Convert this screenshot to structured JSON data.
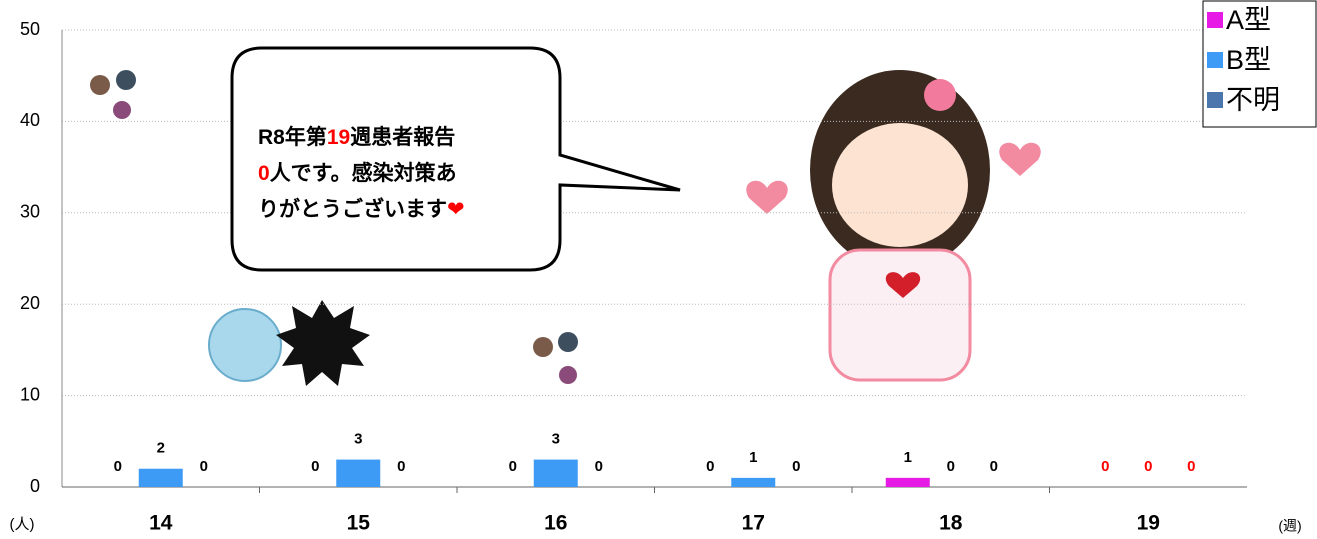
{
  "chart_data": {
    "type": "bar",
    "categories": [
      "14",
      "15",
      "16",
      "17",
      "18",
      "19"
    ],
    "series": [
      {
        "name": "A型",
        "color": "#e619e6",
        "values": [
          0,
          0,
          0,
          0,
          1,
          0
        ]
      },
      {
        "name": "B型",
        "color": "#3d9bf5",
        "values": [
          2,
          3,
          3,
          1,
          0,
          0
        ]
      },
      {
        "name": "不明",
        "color": "#4a76ad",
        "values": [
          0,
          0,
          0,
          0,
          0,
          0
        ]
      }
    ],
    "label_colors": [
      "#000000",
      "#000000",
      "#000000",
      "#000000",
      "#000000",
      "#ff0000"
    ],
    "ylim": [
      0,
      50
    ],
    "yticks": [
      0,
      10,
      20,
      30,
      40,
      50
    ],
    "grid": true,
    "y_unit": "(人)",
    "x_unit": "(週)",
    "legend": "top-right",
    "annotation": [
      [
        {
          "text": "R8年第"
        },
        {
          "text": "19",
          "color": "#ff0000"
        },
        {
          "text": "週患者報告"
        }
      ],
      [
        {
          "text": "0",
          "color": "#ff0000"
        },
        {
          "text": "人です。感染対策あ"
        }
      ],
      [
        {
          "text": "りがとうございます"
        },
        {
          "text": "❤",
          "color": "#ff0000"
        }
      ]
    ]
  }
}
